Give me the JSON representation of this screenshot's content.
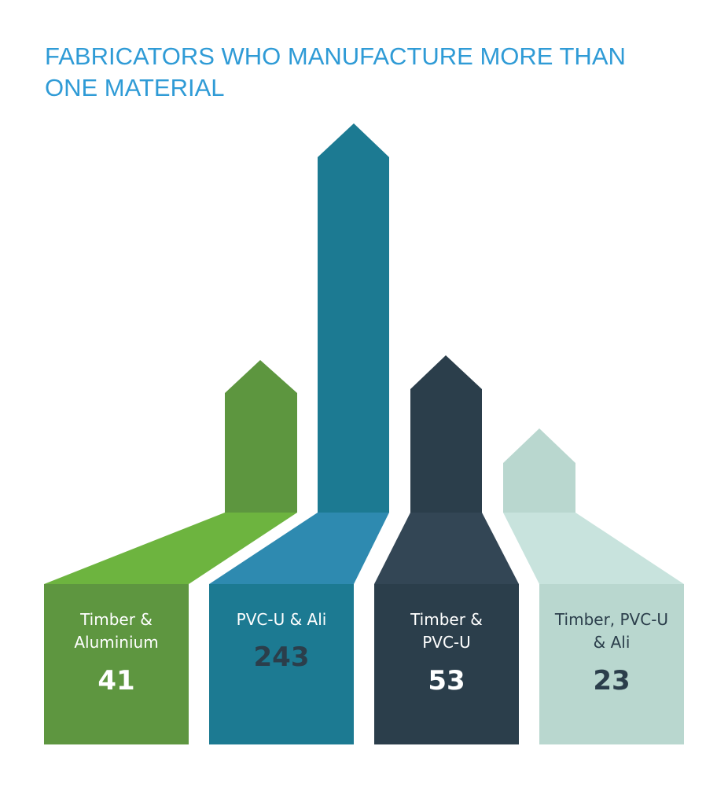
{
  "title": "FABRICATORS WHO MANUFACTURE MORE THAN ONE MATERIAL",
  "panels": [
    {
      "label": "Timber & Aluminium",
      "value": 41
    },
    {
      "label": "PVC-U & Ali",
      "value": 243
    },
    {
      "label": "Timber & PVC-U",
      "value": 53
    },
    {
      "label": "Timber, PVC-U & Ali",
      "value": 23
    }
  ]
}
